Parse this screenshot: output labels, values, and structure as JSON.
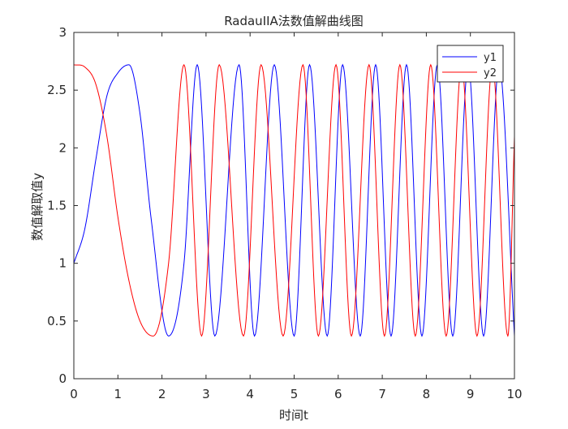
{
  "chart_data": {
    "type": "line",
    "title": "RadauIIA法数值解曲线图",
    "xlabel": "时间t",
    "ylabel": "数值解取值y",
    "xlim": [
      0,
      10
    ],
    "ylim": [
      0,
      3
    ],
    "xticks": [
      "0",
      "1",
      "2",
      "3",
      "4",
      "5",
      "6",
      "7",
      "8",
      "9",
      "10"
    ],
    "yticks": [
      "0",
      "0.5",
      "1",
      "1.5",
      "2",
      "2.5",
      "3"
    ],
    "grid": false,
    "legend_position": "top-right",
    "series": [
      {
        "name": "y1",
        "color": "#0000ff",
        "x": [
          0,
          0.25,
          0.5,
          0.75,
          1.0,
          1.25,
          1.5,
          1.75,
          2.15,
          2.5,
          2.8,
          3.2,
          3.75,
          4.1,
          4.55,
          5.0,
          5.35,
          5.75,
          6.1,
          6.5,
          6.85,
          7.2,
          7.55,
          7.9,
          8.25,
          8.6,
          8.95,
          9.3,
          9.65,
          10.0
        ],
        "y": [
          1.0,
          1.3,
          1.9,
          2.45,
          2.65,
          2.72,
          2.3,
          1.4,
          0.37,
          1.0,
          2.72,
          0.37,
          2.72,
          0.37,
          2.72,
          0.37,
          2.72,
          0.37,
          2.72,
          0.37,
          2.72,
          0.37,
          2.72,
          0.37,
          2.72,
          0.37,
          2.72,
          0.37,
          2.72,
          0.37
        ]
      },
      {
        "name": "y2",
        "color": "#ff0000",
        "x": [
          0,
          0.25,
          0.5,
          0.75,
          1.0,
          1.25,
          1.5,
          1.8,
          2.15,
          2.5,
          2.9,
          3.3,
          3.85,
          4.25,
          4.75,
          5.2,
          5.55,
          5.95,
          6.3,
          6.7,
          7.05,
          7.4,
          7.75,
          8.1,
          8.45,
          8.8,
          9.15,
          9.5,
          9.85,
          10.0
        ],
        "y": [
          2.72,
          2.7,
          2.55,
          2.1,
          1.4,
          0.85,
          0.5,
          0.37,
          1.0,
          2.72,
          0.37,
          2.72,
          0.37,
          2.72,
          0.37,
          2.72,
          0.37,
          2.72,
          0.37,
          2.72,
          0.37,
          2.72,
          0.37,
          2.72,
          0.37,
          2.72,
          0.37,
          2.72,
          0.37,
          2.1
        ]
      }
    ]
  }
}
